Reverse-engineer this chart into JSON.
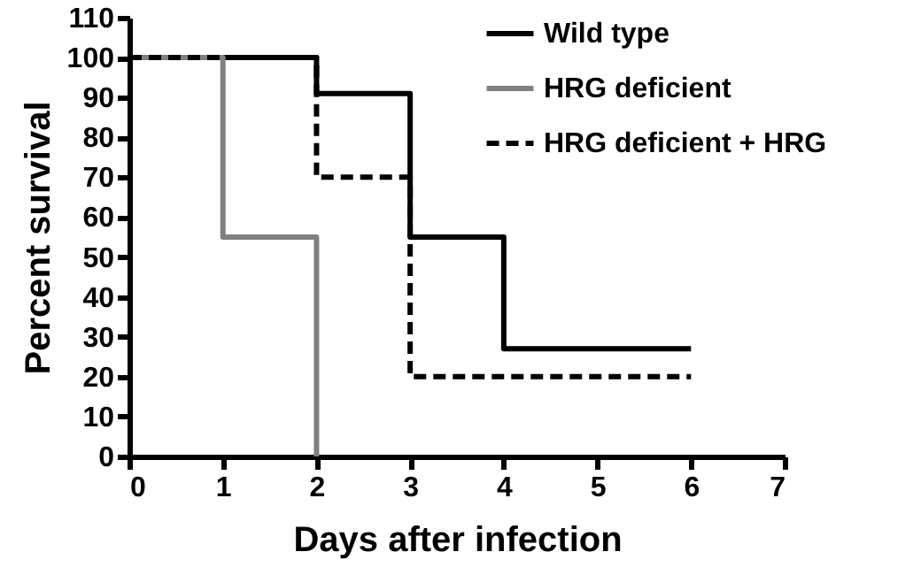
{
  "chart_data": {
    "type": "step",
    "xlabel": "Days after infection",
    "ylabel": "Percent survival",
    "xlim": [
      0,
      7
    ],
    "xticks": [
      0,
      1,
      2,
      3,
      4,
      5,
      6,
      7
    ],
    "ylim": [
      0,
      110
    ],
    "yticks": [
      0,
      10,
      20,
      30,
      40,
      50,
      60,
      70,
      80,
      90,
      100,
      110
    ],
    "grid": false,
    "legend": "top right",
    "series": [
      {
        "name": "Wild type",
        "color": "#000000",
        "line_style": "solid",
        "x": [
          0,
          2,
          3,
          4,
          6
        ],
        "values": [
          100,
          91,
          55,
          27,
          27
        ]
      },
      {
        "name": "HRG deficient",
        "color": "#808080",
        "line_style": "solid",
        "x": [
          0,
          1,
          2
        ],
        "values": [
          100,
          55,
          0
        ]
      },
      {
        "name": "HRG deficient + HRG",
        "color": "#000000",
        "line_style": "dashed",
        "x": [
          0,
          2,
          3,
          6
        ],
        "values": [
          100,
          70,
          20,
          20
        ]
      }
    ]
  }
}
